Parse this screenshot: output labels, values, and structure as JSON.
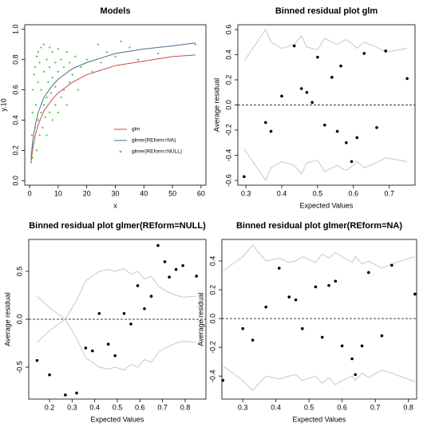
{
  "chart_data": [
    {
      "type": "line",
      "title": "Models",
      "x_label": "x",
      "y_label": "y.10",
      "xlim": [
        -1.7,
        61.7
      ],
      "ylim": [
        -0.03,
        1.03
      ],
      "xticks": [
        0,
        10,
        20,
        30,
        40,
        50,
        60
      ],
      "yticks": [
        {
          "value": 0,
          "label": "0.0"
        },
        0.2,
        0.4,
        0.6,
        0.8,
        {
          "value": 1,
          "label": "1.0"
        }
      ],
      "legend": "lower right",
      "series": [
        {
          "name": "glm",
          "color": "#cc4b4b",
          "mode": "line",
          "x": [
            0.5,
            1,
            2,
            3,
            5,
            8,
            10,
            15,
            20,
            30,
            40,
            50,
            58
          ],
          "values": [
            0.12,
            0.2,
            0.3,
            0.37,
            0.46,
            0.54,
            0.58,
            0.65,
            0.7,
            0.76,
            0.79,
            0.82,
            0.83
          ]
        },
        {
          "name": "glmer(REform=NA)",
          "color": "#4f6b8f",
          "mode": "line",
          "x": [
            0.5,
            1,
            2,
            3,
            5,
            8,
            10,
            15,
            20,
            30,
            40,
            50,
            58
          ],
          "values": [
            0.14,
            0.25,
            0.37,
            0.45,
            0.55,
            0.63,
            0.67,
            0.74,
            0.78,
            0.84,
            0.87,
            0.89,
            0.91
          ]
        },
        {
          "name": "glmer(REform=NULL)",
          "color": "#4fd34f",
          "mode": "points",
          "x": [
            0.5,
            0.8,
            1,
            1,
            1.2,
            1.5,
            1.5,
            2,
            2,
            2.2,
            2.5,
            2.5,
            3,
            3,
            3,
            3.5,
            3.5,
            4,
            4,
            4,
            4.5,
            5,
            5,
            5,
            5.5,
            6,
            6,
            6,
            6.5,
            7,
            7,
            7,
            7.5,
            8,
            8,
            8,
            9,
            9,
            9,
            10,
            10,
            10,
            11,
            11,
            12,
            12,
            13,
            13,
            14,
            14,
            15,
            16,
            17,
            18,
            20,
            22,
            24,
            25,
            27,
            30,
            32,
            35,
            38,
            45,
            58
          ],
          "values": [
            0.12,
            0.3,
            0.15,
            0.45,
            0.6,
            0.25,
            0.7,
            0.35,
            0.75,
            0.5,
            0.2,
            0.82,
            0.4,
            0.65,
            0.85,
            0.3,
            0.78,
            0.45,
            0.6,
            0.88,
            0.35,
            0.5,
            0.72,
            0.9,
            0.42,
            0.55,
            0.8,
            0.3,
            0.65,
            0.45,
            0.75,
            0.88,
            0.58,
            0.4,
            0.68,
            0.85,
            0.5,
            0.78,
            0.62,
            0.45,
            0.72,
            0.87,
            0.55,
            0.8,
            0.6,
            0.75,
            0.5,
            0.85,
            0.65,
            0.78,
            0.7,
            0.82,
            0.6,
            0.75,
            0.8,
            0.72,
            0.9,
            0.78,
            0.85,
            0.82,
            0.92,
            0.88,
            0.8,
            0.84,
            0.9
          ]
        }
      ]
    },
    {
      "type": "binned",
      "title": "Binned residual plot glm",
      "x_label": "Expected Values",
      "y_label": "Average residual",
      "xlim": [
        0.2775,
        0.772
      ],
      "ylim": [
        -0.638,
        0.638
      ],
      "xticks": [
        0.3,
        0.4,
        0.5,
        0.6,
        0.7
      ],
      "yticks": [
        -0.6,
        -0.4,
        -0.2,
        {
          "value": 0,
          "label": "0.0"
        },
        0.2,
        0.4,
        0.6
      ],
      "reference_line": 0,
      "color": "#000000",
      "band_color": "#c8c8c8",
      "x": [
        0.295,
        0.355,
        0.37,
        0.4,
        0.435,
        0.455,
        0.47,
        0.485,
        0.5,
        0.52,
        0.54,
        0.555,
        0.565,
        0.58,
        0.595,
        0.61,
        0.63,
        0.665,
        0.69,
        0.75
      ],
      "values": [
        -0.57,
        -0.14,
        -0.21,
        0.07,
        0.47,
        0.13,
        0.1,
        0.02,
        0.38,
        -0.16,
        0.22,
        -0.21,
        0.31,
        -0.3,
        -0.45,
        -0.26,
        0.41,
        -0.18,
        0.43,
        0.21
      ],
      "upper": [
        0.35,
        0.6,
        0.5,
        0.45,
        0.48,
        0.55,
        0.46,
        0.45,
        0.44,
        0.53,
        0.5,
        0.48,
        0.5,
        0.52,
        0.49,
        0.45,
        0.5,
        0.46,
        0.42,
        0.45
      ],
      "lower": [
        -0.35,
        -0.6,
        -0.5,
        -0.45,
        -0.48,
        -0.55,
        -0.46,
        -0.45,
        -0.44,
        -0.53,
        -0.5,
        -0.48,
        -0.5,
        -0.52,
        -0.49,
        -0.45,
        -0.5,
        -0.46,
        -0.42,
        -0.45
      ]
    },
    {
      "type": "binned",
      "title": "Binned residual plot glmer(REform=NULL)",
      "x_label": "Expected Values",
      "y_label": "Average residual",
      "xlim": [
        0.108,
        0.892
      ],
      "ylim": [
        -0.833,
        0.833
      ],
      "xticks": [
        0.2,
        0.3,
        0.4,
        0.5,
        0.6,
        0.7,
        0.8
      ],
      "yticks": [
        -0.5,
        {
          "value": 0,
          "label": "0.0"
        },
        0.5
      ],
      "reference_line": 0,
      "color": "#000000",
      "band_color": "#c8c8c8",
      "x": [
        0.145,
        0.2,
        0.27,
        0.32,
        0.36,
        0.39,
        0.42,
        0.46,
        0.49,
        0.53,
        0.56,
        0.59,
        0.62,
        0.65,
        0.68,
        0.71,
        0.73,
        0.76,
        0.79,
        0.85
      ],
      "values": [
        -0.43,
        -0.58,
        -0.79,
        -0.77,
        -0.3,
        -0.33,
        0.06,
        -0.26,
        -0.38,
        0.06,
        -0.05,
        0.35,
        0.11,
        0.24,
        0.77,
        0.6,
        0.44,
        0.52,
        0.56,
        0.45
      ],
      "upper": [
        0.24,
        0.12,
        0,
        0.2,
        0.4,
        0.45,
        0.5,
        0.52,
        0.5,
        0.53,
        0.47,
        0.5,
        0.42,
        0.45,
        0.35,
        0.3,
        0.28,
        0.25,
        0.23,
        0.24
      ],
      "lower": [
        -0.24,
        -0.12,
        0,
        -0.2,
        -0.4,
        -0.45,
        -0.5,
        -0.52,
        -0.5,
        -0.53,
        -0.47,
        -0.5,
        -0.42,
        -0.45,
        -0.35,
        -0.3,
        -0.28,
        -0.25,
        -0.23,
        -0.24
      ]
    },
    {
      "type": "binned",
      "title": "Binned residual plot glmer(REform=NA)",
      "x_label": "Expected Values",
      "y_label": "Average residual",
      "xlim": [
        0.237,
        0.825
      ],
      "ylim": [
        -0.56,
        0.55
      ],
      "xticks": [
        0.3,
        0.4,
        0.5,
        0.6,
        0.7,
        0.8
      ],
      "yticks": [
        -0.4,
        -0.2,
        {
          "value": 0,
          "label": "0.0"
        },
        0.2,
        0.4
      ],
      "reference_line": 0,
      "color": "#000000",
      "band_color": "#c8c8c8",
      "x": [
        0.24,
        0.3,
        0.33,
        0.37,
        0.41,
        0.44,
        0.46,
        0.48,
        0.52,
        0.54,
        0.56,
        0.58,
        0.6,
        0.63,
        0.64,
        0.66,
        0.68,
        0.72,
        0.75,
        0.82
      ],
      "values": [
        -0.43,
        -0.07,
        -0.15,
        0.08,
        0.35,
        0.15,
        0.13,
        -0.07,
        0.22,
        -0.13,
        0.23,
        0.26,
        -0.19,
        -0.28,
        -0.39,
        -0.19,
        0.32,
        -0.12,
        0.37,
        0.17
      ],
      "upper": [
        0.33,
        0.43,
        0.51,
        0.4,
        0.42,
        0.39,
        0.4,
        0.43,
        0.39,
        0.45,
        0.42,
        0.46,
        0.43,
        0.39,
        0.43,
        0.38,
        0.4,
        0.35,
        0.38,
        0.43
      ],
      "lower": [
        -0.33,
        -0.43,
        -0.5,
        -0.4,
        -0.42,
        -0.4,
        -0.39,
        -0.43,
        -0.4,
        -0.45,
        -0.41,
        -0.46,
        -0.43,
        -0.4,
        -0.43,
        -0.38,
        -0.41,
        -0.36,
        -0.38,
        -0.44
      ]
    }
  ]
}
